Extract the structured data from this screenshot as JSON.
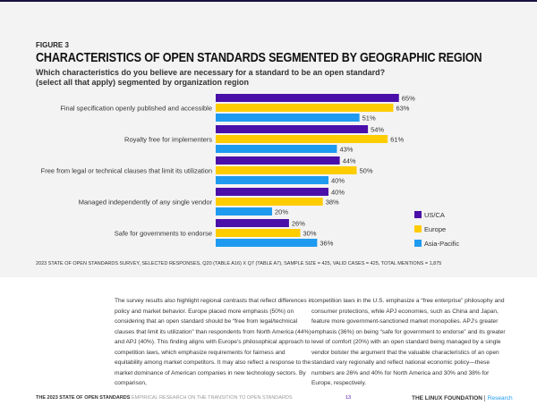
{
  "figure_label": "FIGURE 3",
  "title": "CHARACTERISTICS OF OPEN STANDARDS SEGMENTED BY GEOGRAPHIC REGION",
  "subtitle": "Which characteristics do you believe are necessary for a standard to be an open standard? (select all that apply) segmented by organization region",
  "chart_data": {
    "type": "bar",
    "orientation": "horizontal",
    "categories": [
      "Final specification openly published and accessible",
      "Royalty free for implementers",
      "Free from legal or technical clauses that limit its utilization",
      "Managed independently of any single vendor",
      "Safe for governments to endorse"
    ],
    "series": [
      {
        "name": "US/CA",
        "color": "#4a0fa8",
        "values": [
          65,
          54,
          44,
          40,
          26
        ]
      },
      {
        "name": "Europe",
        "color": "#ffcc00",
        "values": [
          63,
          61,
          50,
          38,
          30
        ]
      },
      {
        "name": "Asia-Pacific",
        "color": "#1e9bf0",
        "values": [
          51,
          43,
          40,
          20,
          36
        ]
      }
    ],
    "value_suffix": "%",
    "legend": "bottom-right",
    "grid": false
  },
  "source_note": "2023 STATE OF OPEN STANDARDS SURVEY, SELECTED RESPONSES, Q20 (TABLE A16) X Q7 (TABLE A7), SAMPLE SIZE = 425, VALID CASES = 425, TOTAL MENTIONS = 1,875",
  "body_left": "The survey results also highlight regional contrasts that reflect differences in policy and market behavior. Europe placed more emphasis (50%) on considering that an open standard should be “free from legal/technical clauses that limit its utilization” than respondents from North America (44%) and APJ (40%). This finding aligns with Europe’s philosophical approach to competition laws, which emphasize requirements for fairness and equitability among market competitors. It may also reflect a response to the market dominance of American companies in new technology sectors. By comparison,",
  "body_right": "competition laws in the U.S. emphasize a “free enterprise” philosophy and consumer protections, while APJ economies, such as China and Japan, feature more government-sanctioned market monopolies. APJ’s greater emphasis (36%) on being “safe for government to endorse” and its greater level of comfort (20%) with an open standard being managed by a single vendor bolster the argument that the valuable characteristics of an open standard vary regionally and reflect national economic policy—these numbers are 26% and 40% for North America and 30% and 38% for Europe, respectively.",
  "footer": {
    "report": "THE 2023 STATE OF OPEN STANDARDS",
    "subtitle": "EMPIRICAL RESEARCH ON THE TRANSITION TO OPEN STANDARDS",
    "page": "13",
    "logo": "THE LINUX FOUNDATION",
    "logo_suffix": "Research"
  }
}
